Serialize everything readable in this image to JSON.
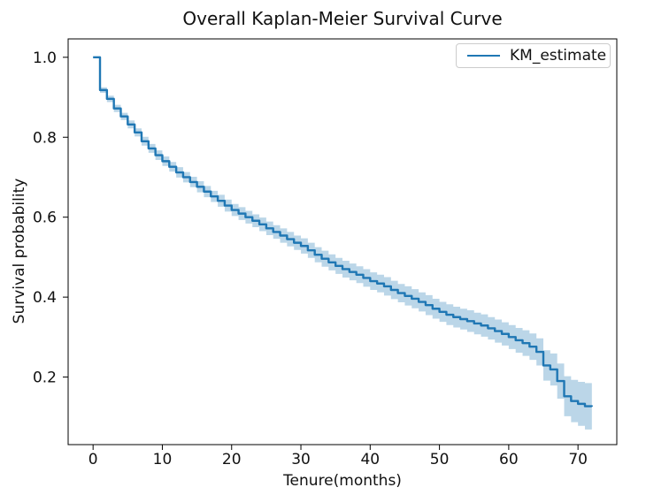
{
  "chart_data": {
    "type": "line",
    "subtype": "kaplan-meier-step",
    "step": "post",
    "title": "Overall Kaplan-Meier Survival Curve",
    "xlabel": "Tenure(months)",
    "ylabel": "Survival probability",
    "grid": false,
    "xlim": [
      -3.6,
      75.6
    ],
    "ylim": [
      0.031,
      1.046
    ],
    "xticks": [
      "0",
      "10",
      "20",
      "30",
      "40",
      "50",
      "60",
      "70"
    ],
    "xtick_values": [
      0,
      10,
      20,
      30,
      40,
      50,
      60,
      70
    ],
    "yticks": [
      "0.2",
      "0.4",
      "0.6",
      "0.8",
      "1.0"
    ],
    "ytick_values": [
      0.2,
      0.4,
      0.6,
      0.8,
      1.0
    ],
    "legend": {
      "position": "upper-right",
      "entries": [
        {
          "label": "KM_estimate",
          "color": "#1f77b4"
        }
      ]
    },
    "series": [
      {
        "name": "KM_estimate",
        "color": "#1f77b4",
        "ci_opacity": 0.3,
        "x": [
          0,
          1,
          2,
          3,
          4,
          5,
          6,
          7,
          8,
          9,
          10,
          11,
          12,
          13,
          14,
          15,
          16,
          17,
          18,
          19,
          20,
          21,
          22,
          23,
          24,
          25,
          26,
          27,
          28,
          29,
          30,
          31,
          32,
          33,
          34,
          35,
          36,
          37,
          38,
          39,
          40,
          41,
          42,
          43,
          44,
          45,
          46,
          47,
          48,
          49,
          50,
          51,
          52,
          53,
          54,
          55,
          56,
          57,
          58,
          59,
          60,
          61,
          62,
          63,
          64,
          65,
          66,
          67,
          68,
          69,
          70,
          71,
          72
        ],
        "y": [
          1.0,
          0.918,
          0.896,
          0.872,
          0.852,
          0.832,
          0.812,
          0.79,
          0.772,
          0.755,
          0.74,
          0.726,
          0.712,
          0.7,
          0.688,
          0.676,
          0.664,
          0.652,
          0.641,
          0.629,
          0.618,
          0.609,
          0.6,
          0.591,
          0.582,
          0.572,
          0.563,
          0.554,
          0.545,
          0.536,
          0.528,
          0.517,
          0.506,
          0.496,
          0.487,
          0.478,
          0.47,
          0.463,
          0.456,
          0.448,
          0.44,
          0.434,
          0.427,
          0.418,
          0.41,
          0.403,
          0.396,
          0.388,
          0.38,
          0.371,
          0.363,
          0.356,
          0.35,
          0.345,
          0.34,
          0.334,
          0.329,
          0.322,
          0.315,
          0.308,
          0.3,
          0.292,
          0.285,
          0.276,
          0.263,
          0.229,
          0.219,
          0.19,
          0.152,
          0.14,
          0.133,
          0.127,
          0.126
        ],
        "ci_upper": [
          1.0,
          0.925,
          0.904,
          0.881,
          0.861,
          0.842,
          0.822,
          0.801,
          0.783,
          0.767,
          0.752,
          0.738,
          0.725,
          0.713,
          0.701,
          0.69,
          0.678,
          0.666,
          0.656,
          0.644,
          0.633,
          0.625,
          0.616,
          0.607,
          0.599,
          0.589,
          0.58,
          0.572,
          0.563,
          0.554,
          0.547,
          0.536,
          0.525,
          0.516,
          0.507,
          0.498,
          0.491,
          0.484,
          0.477,
          0.47,
          0.462,
          0.456,
          0.45,
          0.441,
          0.433,
          0.427,
          0.42,
          0.412,
          0.405,
          0.396,
          0.388,
          0.382,
          0.376,
          0.371,
          0.367,
          0.361,
          0.357,
          0.35,
          0.344,
          0.337,
          0.33,
          0.323,
          0.317,
          0.309,
          0.297,
          0.267,
          0.259,
          0.234,
          0.202,
          0.193,
          0.188,
          0.185,
          0.186
        ],
        "ci_lower": [
          1.0,
          0.911,
          0.888,
          0.863,
          0.843,
          0.822,
          0.802,
          0.779,
          0.761,
          0.743,
          0.728,
          0.714,
          0.699,
          0.687,
          0.675,
          0.662,
          0.65,
          0.638,
          0.626,
          0.614,
          0.603,
          0.593,
          0.584,
          0.575,
          0.565,
          0.555,
          0.546,
          0.536,
          0.527,
          0.518,
          0.509,
          0.498,
          0.487,
          0.476,
          0.467,
          0.458,
          0.449,
          0.442,
          0.435,
          0.426,
          0.418,
          0.412,
          0.404,
          0.395,
          0.387,
          0.379,
          0.372,
          0.364,
          0.355,
          0.346,
          0.338,
          0.33,
          0.324,
          0.319,
          0.313,
          0.307,
          0.301,
          0.294,
          0.286,
          0.279,
          0.27,
          0.261,
          0.253,
          0.243,
          0.229,
          0.191,
          0.179,
          0.146,
          0.102,
          0.087,
          0.078,
          0.069,
          0.066
        ]
      }
    ]
  }
}
